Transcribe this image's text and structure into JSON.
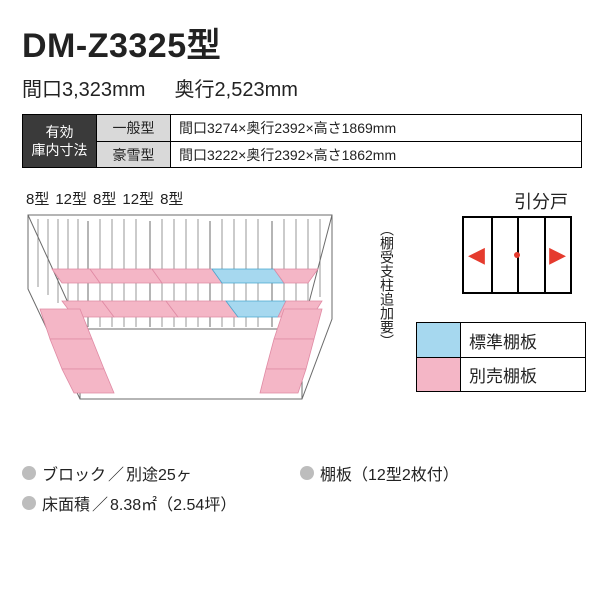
{
  "title": "DM-Z3325型",
  "subtitle": {
    "w_label": "間口",
    "w_val": "3,323",
    "d_label": "奥行",
    "d_val": "2,523",
    "unit": "mm"
  },
  "dim_table": {
    "head": "有効\n庫内寸法",
    "rows": [
      {
        "label": "一般型",
        "value": "間口3274×奥行2392×高さ1869mm"
      },
      {
        "label": "豪雪型",
        "value": "間口3222×奥行2392×高さ1862mm"
      }
    ]
  },
  "panel_labels": [
    "8型",
    "12型",
    "8型",
    "12型",
    "8型"
  ],
  "vnote": "（棚受支柱追加要）",
  "shelf_colors": {
    "std": "#a6d8ef",
    "opt": "#f4b6c6",
    "line": "#6b6b6b",
    "std_edge": "#4aa7cf",
    "opt_edge": "#e08aa4"
  },
  "door": {
    "label": "引分戸"
  },
  "legend": [
    {
      "swatch": "#a6d8ef",
      "label": "標準棚板"
    },
    {
      "swatch": "#f4b6c6",
      "label": "別売棚板"
    }
  ],
  "footer": {
    "left": [
      {
        "k": "ブロック",
        "v": "別途25ヶ"
      },
      {
        "k": "床面積",
        "v": "8.38㎡（2.54坪）"
      }
    ],
    "right": [
      {
        "k": "棚板",
        "v": "（12型2枚付）"
      }
    ]
  }
}
